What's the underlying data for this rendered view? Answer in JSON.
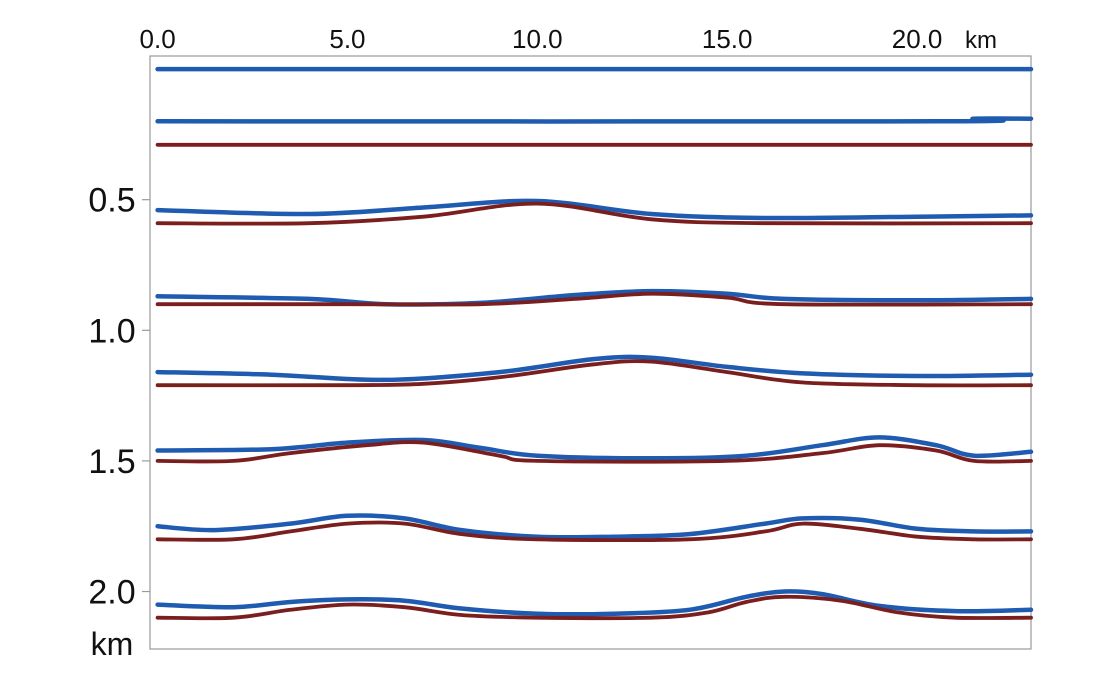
{
  "chart_data": {
    "type": "line",
    "title": "",
    "x_axis": {
      "position": "top",
      "unit": "km",
      "ticks": [
        "0.0",
        "5.0",
        "10.0",
        "15.0",
        "20.0"
      ],
      "tick_values": [
        0,
        5,
        10,
        15,
        20
      ],
      "range": [
        -0.2,
        23.0
      ]
    },
    "y_axis": {
      "unit": "km",
      "inverted": true,
      "ticks": [
        "0.5",
        "1.0",
        "1.5",
        "2.0"
      ],
      "tick_values": [
        0.5,
        1.0,
        1.5,
        2.0
      ],
      "range": [
        -0.05,
        2.22
      ]
    },
    "grid": false,
    "legend": "none",
    "colors": {
      "blue": "#1f5bb0",
      "red": "#7a1e1e"
    },
    "series": [
      {
        "color": "blue",
        "points": [
          [
            0,
            0.0
          ],
          [
            23,
            0.0
          ]
        ]
      },
      {
        "color": "blue",
        "points": [
          [
            0,
            0.2
          ],
          [
            20.5,
            0.2
          ],
          [
            21.5,
            0.19
          ],
          [
            23,
            0.19
          ]
        ]
      },
      {
        "color": "red",
        "points": [
          [
            0,
            0.29
          ],
          [
            23,
            0.29
          ]
        ]
      },
      {
        "color": "blue",
        "points": [
          [
            0,
            0.54
          ],
          [
            4,
            0.555
          ],
          [
            7,
            0.53
          ],
          [
            10,
            0.505
          ],
          [
            13,
            0.555
          ],
          [
            16,
            0.57
          ],
          [
            20,
            0.565
          ],
          [
            23,
            0.56
          ]
        ]
      },
      {
        "color": "red",
        "points": [
          [
            0,
            0.59
          ],
          [
            4,
            0.59
          ],
          [
            7,
            0.565
          ],
          [
            10,
            0.515
          ],
          [
            13,
            0.575
          ],
          [
            16,
            0.59
          ],
          [
            23,
            0.59
          ]
        ]
      },
      {
        "color": "blue",
        "points": [
          [
            0,
            0.87
          ],
          [
            4,
            0.88
          ],
          [
            6,
            0.9
          ],
          [
            8.5,
            0.895
          ],
          [
            11,
            0.865
          ],
          [
            13,
            0.85
          ],
          [
            15,
            0.86
          ],
          [
            16.5,
            0.88
          ],
          [
            20,
            0.885
          ],
          [
            23,
            0.88
          ]
        ]
      },
      {
        "color": "red",
        "points": [
          [
            0,
            0.9
          ],
          [
            5,
            0.9
          ],
          [
            8.5,
            0.9
          ],
          [
            11,
            0.88
          ],
          [
            13,
            0.86
          ],
          [
            15,
            0.875
          ],
          [
            16.5,
            0.9
          ],
          [
            23,
            0.9
          ]
        ]
      },
      {
        "color": "blue",
        "points": [
          [
            0,
            1.16
          ],
          [
            3,
            1.17
          ],
          [
            6,
            1.19
          ],
          [
            9,
            1.16
          ],
          [
            11.5,
            1.11
          ],
          [
            13,
            1.105
          ],
          [
            15,
            1.14
          ],
          [
            17,
            1.165
          ],
          [
            20,
            1.175
          ],
          [
            23,
            1.17
          ]
        ]
      },
      {
        "color": "red",
        "points": [
          [
            0,
            1.21
          ],
          [
            5,
            1.21
          ],
          [
            7,
            1.205
          ],
          [
            9,
            1.18
          ],
          [
            11.5,
            1.13
          ],
          [
            13,
            1.12
          ],
          [
            15,
            1.16
          ],
          [
            17,
            1.2
          ],
          [
            20,
            1.21
          ],
          [
            23,
            1.21
          ]
        ]
      },
      {
        "color": "blue",
        "points": [
          [
            0,
            1.46
          ],
          [
            3,
            1.455
          ],
          [
            5,
            1.43
          ],
          [
            7,
            1.42
          ],
          [
            8.5,
            1.45
          ],
          [
            10,
            1.48
          ],
          [
            13,
            1.49
          ],
          [
            15.5,
            1.48
          ],
          [
            17.5,
            1.44
          ],
          [
            19,
            1.41
          ],
          [
            20.5,
            1.44
          ],
          [
            21.5,
            1.48
          ],
          [
            23,
            1.465
          ]
        ]
      },
      {
        "color": "red",
        "points": [
          [
            0,
            1.5
          ],
          [
            2,
            1.5
          ],
          [
            3.5,
            1.47
          ],
          [
            5.5,
            1.44
          ],
          [
            7,
            1.43
          ],
          [
            9,
            1.48
          ],
          [
            10,
            1.5
          ],
          [
            15,
            1.5
          ],
          [
            17.5,
            1.47
          ],
          [
            19,
            1.44
          ],
          [
            20.5,
            1.46
          ],
          [
            21.5,
            1.5
          ],
          [
            23,
            1.5
          ]
        ]
      },
      {
        "color": "blue",
        "points": [
          [
            0,
            1.75
          ],
          [
            1.5,
            1.765
          ],
          [
            3.5,
            1.74
          ],
          [
            5,
            1.71
          ],
          [
            6.5,
            1.72
          ],
          [
            8,
            1.765
          ],
          [
            10,
            1.79
          ],
          [
            12,
            1.79
          ],
          [
            14,
            1.78
          ],
          [
            16,
            1.74
          ],
          [
            17,
            1.72
          ],
          [
            18.5,
            1.725
          ],
          [
            20,
            1.76
          ],
          [
            21.5,
            1.77
          ],
          [
            23,
            1.77
          ]
        ]
      },
      {
        "color": "red",
        "points": [
          [
            0,
            1.8
          ],
          [
            2,
            1.8
          ],
          [
            3.5,
            1.77
          ],
          [
            5,
            1.74
          ],
          [
            6.5,
            1.74
          ],
          [
            8,
            1.78
          ],
          [
            10,
            1.8
          ],
          [
            14,
            1.8
          ],
          [
            16,
            1.77
          ],
          [
            17,
            1.74
          ],
          [
            18.5,
            1.76
          ],
          [
            20,
            1.79
          ],
          [
            21.5,
            1.8
          ],
          [
            23,
            1.8
          ]
        ]
      },
      {
        "color": "blue",
        "points": [
          [
            0,
            2.05
          ],
          [
            2,
            2.06
          ],
          [
            3.5,
            2.04
          ],
          [
            5,
            2.03
          ],
          [
            6.5,
            2.035
          ],
          [
            8,
            2.065
          ],
          [
            10,
            2.085
          ],
          [
            12,
            2.085
          ],
          [
            14,
            2.07
          ],
          [
            15.5,
            2.02
          ],
          [
            16.5,
            2.0
          ],
          [
            17.5,
            2.01
          ],
          [
            19,
            2.055
          ],
          [
            21,
            2.075
          ],
          [
            23,
            2.07
          ]
        ]
      },
      {
        "color": "red",
        "points": [
          [
            0,
            2.1
          ],
          [
            2,
            2.1
          ],
          [
            3.5,
            2.07
          ],
          [
            5,
            2.05
          ],
          [
            6.5,
            2.06
          ],
          [
            8,
            2.09
          ],
          [
            10,
            2.1
          ],
          [
            13,
            2.1
          ],
          [
            14.5,
            2.08
          ],
          [
            15.5,
            2.04
          ],
          [
            16.5,
            2.02
          ],
          [
            18,
            2.035
          ],
          [
            19.5,
            2.08
          ],
          [
            21,
            2.1
          ],
          [
            23,
            2.1
          ]
        ]
      }
    ]
  }
}
